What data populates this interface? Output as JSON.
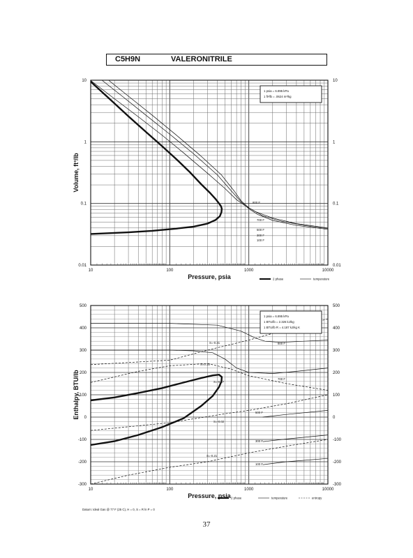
{
  "header": {
    "formula": "C5H9N",
    "name": "VALERONITRILE"
  },
  "page_number": "37",
  "chart_data": [
    {
      "type": "line",
      "xscale": "log",
      "yscale": "log",
      "xlim": [
        10,
        10000
      ],
      "ylim": [
        0.01,
        10
      ],
      "xlabel": "Pressure,  psia",
      "ylabel": "Volume, ft^3/lb",
      "x_ticks": [
        "10",
        "100",
        "1000",
        "10000"
      ],
      "y_ticks": [
        "10",
        "1",
        "0.1",
        "0.01"
      ],
      "y_ticks_right": [
        "10",
        "1",
        "0.1",
        "0.01"
      ],
      "grid": true,
      "conversion_box": [
        "1 psia  =  6.895 kPa",
        "1 ft^3/lb  =  .0624 m^3/kg"
      ],
      "legend": [
        "2 phase",
        "temperature"
      ],
      "legend_placement": "bottom-right",
      "series": [
        {
          "name": "2 phase",
          "style": "heavy",
          "x": [
            10,
            20,
            30,
            50,
            80,
            120,
            180,
            250,
            320,
            380,
            420,
            445,
            455,
            450,
            430,
            380,
            300,
            200,
            120,
            60,
            30,
            10
          ],
          "y": [
            9.5,
            4.2,
            2.6,
            1.45,
            0.85,
            0.53,
            0.32,
            0.205,
            0.15,
            0.118,
            0.1,
            0.09,
            0.082,
            0.072,
            0.062,
            0.054,
            0.047,
            0.042,
            0.039,
            0.036,
            0.034,
            0.032
          ]
        },
        {
          "name": "",
          "style": "thin",
          "x": [
            10,
            20,
            40,
            80,
            150,
            300,
            500,
            700,
            900,
            1200,
            2000,
            4000,
            10000
          ],
          "y": [
            9.9,
            5.0,
            2.55,
            1.28,
            0.66,
            0.31,
            0.175,
            0.115,
            0.092,
            0.074,
            0.058,
            0.047,
            0.04
          ]
        },
        {
          "name": "",
          "style": "thin",
          "x": [
            14,
            25,
            50,
            100,
            200,
            400,
            600,
            800,
            1000,
            1300,
            2000,
            4000,
            10000
          ],
          "y": [
            9.9,
            5.5,
            2.7,
            1.33,
            0.64,
            0.29,
            0.16,
            0.106,
            0.082,
            0.066,
            0.053,
            0.044,
            0.038
          ]
        },
        {
          "name": "",
          "style": "thin",
          "x": [
            17,
            30,
            60,
            120,
            240,
            450,
            650,
            800,
            1000,
            1500,
            2500,
            5000,
            10000
          ],
          "y": [
            9.9,
            5.5,
            2.7,
            1.3,
            0.61,
            0.29,
            0.16,
            0.11,
            0.085,
            0.063,
            0.052,
            0.044,
            0.039
          ]
        }
      ],
      "isotherm_labels": [
        "800 F",
        "700 F",
        "500 F",
        "300 F",
        "100 F"
      ],
      "isotherm_y_at_right": [
        0.036,
        0.0345,
        0.033,
        0.0315,
        0.0305
      ]
    },
    {
      "type": "line",
      "xscale": "log",
      "xlim": [
        10,
        10000
      ],
      "ylim": [
        -300,
        500
      ],
      "xlabel": "Pressure,  psia",
      "ylabel": "Enthalpy, BTU/lb",
      "x_ticks": [
        "10",
        "100",
        "1000",
        "10000"
      ],
      "y_ticks": [
        "500",
        "400",
        "300",
        "200",
        "100",
        "0",
        "-100",
        "-200",
        "-300"
      ],
      "y_ticks_right": [
        "500",
        "400",
        "300",
        "200",
        "100",
        "0",
        "-100",
        "-200",
        "-300"
      ],
      "grid": true,
      "conversion_box": [
        "1 psia  =  6.895 kPa",
        "1 BTU/lb  =  2.326 kJ/kg",
        "1 BTU/lb R  =  4.187 kJ/kg K"
      ],
      "legend": [
        "2 phase",
        "temperature",
        "entropy"
      ],
      "legend_placement": "bottom-right",
      "footnote": "Datum: Ideal Gas @ 77 F (25 C),  H = 0,  S = R ln P = 0",
      "series": [
        {
          "name": "2 phase",
          "style": "heavy",
          "x": [
            10,
            20,
            40,
            80,
            150,
            250,
            350,
            420,
            455,
            450,
            420,
            350,
            250,
            150,
            80,
            40,
            20,
            10
          ],
          "y": [
            75,
            88,
            108,
            130,
            155,
            175,
            187,
            190,
            180,
            160,
            135,
            95,
            50,
            -5,
            -45,
            -80,
            -108,
            -125
          ]
        },
        {
          "name": "",
          "style": "thin",
          "x": [
            10,
            100,
            400,
            800,
            1200,
            1600,
            2500,
            5000,
            10000
          ],
          "y": [
            420,
            420,
            412,
            385,
            355,
            340,
            335,
            340,
            345
          ]
        },
        {
          "name": "",
          "style": "thin",
          "x": [
            10,
            100,
            200,
            350,
            500,
            700,
            1000,
            2000,
            4000,
            10000
          ],
          "y": [
            300,
            300,
            297,
            288,
            260,
            220,
            200,
            195,
            205,
            220
          ]
        },
        {
          "name": "",
          "style": "thin",
          "x": [
            1500,
            3000,
            10000
          ],
          "y": [
            0,
            12,
            30
          ]
        },
        {
          "name": "",
          "style": "thin",
          "x": [
            1500,
            3000,
            10000
          ],
          "y": [
            -110,
            -98,
            -80
          ]
        },
        {
          "name": "",
          "style": "thin",
          "x": [
            1500,
            3000,
            10000
          ],
          "y": [
            -213,
            -200,
            -185
          ]
        },
        {
          "name": "",
          "style": "dashed",
          "x": [
            10,
            100,
            300,
            1000,
            2000,
            10000
          ],
          "y": [
            235,
            255,
            300,
            345,
            375,
            440
          ]
        },
        {
          "name": "",
          "style": "dashed",
          "x": [
            10,
            40,
            100,
            300,
            600,
            1000,
            3000,
            10000
          ],
          "y": [
            155,
            205,
            230,
            240,
            215,
            185,
            150,
            120
          ]
        },
        {
          "name": "",
          "style": "dashed",
          "x": [
            10,
            100,
            500,
            1000,
            3000,
            10000
          ],
          "y": [
            -60,
            -25,
            15,
            30,
            60,
            100
          ]
        },
        {
          "name": "",
          "style": "dashed",
          "x": [
            10,
            30,
            100,
            300,
            1000,
            3000,
            10000
          ],
          "y": [
            -300,
            -260,
            -225,
            -200,
            -160,
            -130,
            -100
          ]
        }
      ],
      "temperature_labels": [
        "800 F",
        "700 F",
        "500 F",
        "300 F",
        "100 F"
      ],
      "entropy_labels": [
        "S=-0.31",
        "S=0.15",
        "S=-0.17",
        "S=-0.02",
        "S=-0.21"
      ]
    }
  ]
}
